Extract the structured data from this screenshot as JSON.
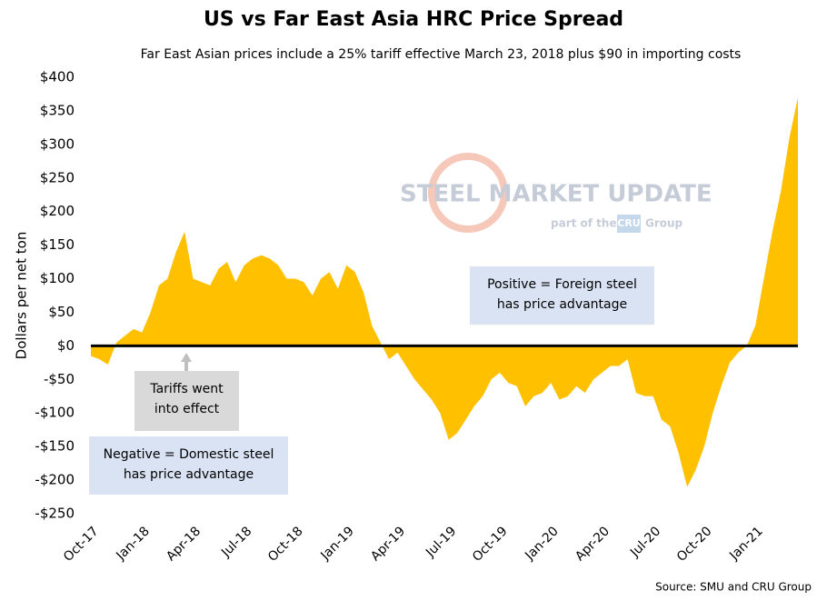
{
  "chart_data": {
    "type": "area",
    "title": "US vs Far East Asia HRC Price Spread",
    "subtitle": "Far East Asian prices include a 25% tariff effective March 23, 2018 plus $90 in importing costs",
    "y_label": "Dollars per net ton",
    "source": "Source: SMU and CRU Group",
    "watermark": {
      "brand": "STEEL MARKET UPDATE",
      "part": "part of the",
      "cru": "CRU",
      "group": "Group"
    },
    "annotations": [
      {
        "lines": [
          "Positive = Foreign steel",
          "has price advantage"
        ]
      },
      {
        "lines": [
          "Negative = Domestic steel",
          "has price advantage"
        ]
      },
      {
        "lines": [
          "Tariffs went",
          "into effect"
        ]
      }
    ],
    "categories": [
      "Oct-17",
      null,
      null,
      null,
      null,
      null,
      "Jan-18",
      null,
      null,
      null,
      null,
      null,
      "Apr-18",
      null,
      null,
      null,
      null,
      null,
      "Jul-18",
      null,
      null,
      null,
      null,
      null,
      "Oct-18",
      null,
      null,
      null,
      null,
      null,
      "Jan-19",
      null,
      null,
      null,
      null,
      null,
      "Apr-19",
      null,
      null,
      null,
      null,
      null,
      "Jul-19",
      null,
      null,
      null,
      null,
      null,
      "Oct-19",
      null,
      null,
      null,
      null,
      null,
      "Jan-20",
      null,
      null,
      null,
      null,
      null,
      "Apr-20",
      null,
      null,
      null,
      null,
      null,
      "Jul-20",
      null,
      null,
      null,
      null,
      null,
      "Oct-20",
      null,
      null,
      null,
      null,
      null,
      "Jan-21",
      null,
      null,
      null,
      null,
      null
    ],
    "series": [
      {
        "name": "Spread",
        "color": "#FFC000",
        "values": [
          -15,
          -20,
          -28,
          5,
          15,
          25,
          20,
          50,
          90,
          100,
          140,
          170,
          100,
          95,
          90,
          115,
          125,
          95,
          120,
          130,
          135,
          130,
          120,
          100,
          100,
          95,
          75,
          100,
          110,
          85,
          120,
          110,
          80,
          30,
          5,
          -20,
          -10,
          -30,
          -50,
          -65,
          -80,
          -100,
          -140,
          -130,
          -110,
          -90,
          -75,
          -50,
          -40,
          -55,
          -60,
          -90,
          -75,
          -70,
          -55,
          -80,
          -75,
          -60,
          -70,
          -50,
          -40,
          -30,
          -30,
          -20,
          -70,
          -75,
          -75,
          -110,
          -120,
          -160,
          -210,
          -185,
          -150,
          -100,
          -60,
          -25,
          -10,
          0,
          30,
          100,
          170,
          230,
          310,
          370
        ]
      }
    ],
    "ylim": [
      -250,
      400
    ],
    "yticks": [
      {
        "value": 400,
        "label": "$400"
      },
      {
        "value": 350,
        "label": "$350"
      },
      {
        "value": 300,
        "label": "$300"
      },
      {
        "value": 250,
        "label": "$250"
      },
      {
        "value": 200,
        "label": "$200"
      },
      {
        "value": 150,
        "label": "$150"
      },
      {
        "value": 100,
        "label": "$100"
      },
      {
        "value": 50,
        "label": "$50"
      },
      {
        "value": 0,
        "label": "$0"
      },
      {
        "value": -50,
        "label": "-$50"
      },
      {
        "value": -100,
        "label": "-$100"
      },
      {
        "value": -150,
        "label": "-$150"
      },
      {
        "value": -200,
        "label": "-$200"
      },
      {
        "value": -250,
        "label": "-$250"
      }
    ],
    "grid": false
  }
}
